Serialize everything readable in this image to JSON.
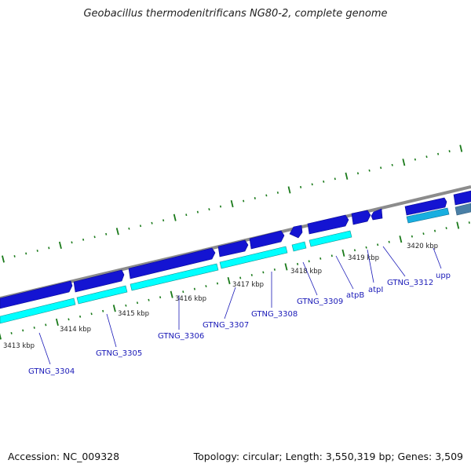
{
  "title": "Geobacillus thermodenitrificans NG80-2, complete genome",
  "footer": {
    "accession": "Accession: NC_009328",
    "summary": "Topology: circular; Length: 3,550,319 bp; Genes: 3,509"
  },
  "scale_labels": [
    "3413 kbp",
    "3414 kbp",
    "3415 kbp",
    "3416 kbp",
    "3417 kbp",
    "3418 kbp",
    "3419 kbp",
    "3420 kbp"
  ],
  "gene_labels": [
    "GTNG_3304",
    "GTNG_3305",
    "GTNG_3306",
    "GTNG_3307",
    "GTNG_3308",
    "GTNG_3309",
    "atpB",
    "atpI",
    "GTNG_3312",
    "upp"
  ],
  "colors": {
    "genome_line": "#8c8c8c",
    "gene_dark": "#1414d2",
    "gene_light": "#00ffff",
    "gene_mid": "#18aee0",
    "gene_steel": "#4a7fa6",
    "tick": "#1a7a1a",
    "label": "#1a1ab8"
  }
}
